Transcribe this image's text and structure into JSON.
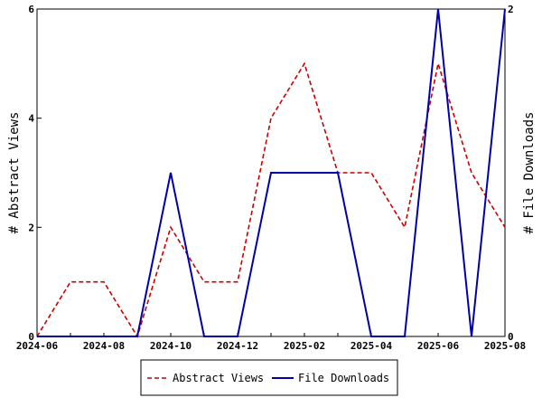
{
  "chart_data": {
    "type": "line",
    "x": [
      "2024-06",
      "2024-07",
      "2024-08",
      "2024-09",
      "2024-10",
      "2024-11",
      "2024-12",
      "2025-01",
      "2025-02",
      "2025-03",
      "2025-04",
      "2025-05",
      "2025-06",
      "2025-07",
      "2025-08"
    ],
    "x_tick_labels": [
      "2024-06",
      "2024-08",
      "2024-10",
      "2024-12",
      "2025-02",
      "2025-04",
      "2025-06",
      "2025-08"
    ],
    "series": [
      {
        "name": "Abstract Views",
        "axis": "left",
        "color": "#cc0000",
        "dash": "dashed",
        "values": [
          0,
          1,
          1,
          0,
          2,
          1,
          1,
          4,
          5,
          3,
          3,
          2,
          5,
          3,
          2
        ]
      },
      {
        "name": "File Downloads",
        "axis": "right",
        "color": "#0000aa",
        "dash": "solid",
        "values": [
          0,
          0,
          0,
          0,
          1,
          0,
          0,
          1,
          1,
          1,
          0,
          0,
          2,
          0,
          2
        ]
      }
    ],
    "ylabel_left": "# Abstract Views",
    "ylabel_right": "# File Downloads",
    "ylim_left": [
      0,
      6
    ],
    "yticks_left": [
      "0",
      "2",
      "4",
      "6"
    ],
    "ylim_right": [
      0,
      2
    ],
    "yticks_right": [
      "0",
      "2"
    ],
    "grid": false,
    "legend_position": "bottom"
  }
}
